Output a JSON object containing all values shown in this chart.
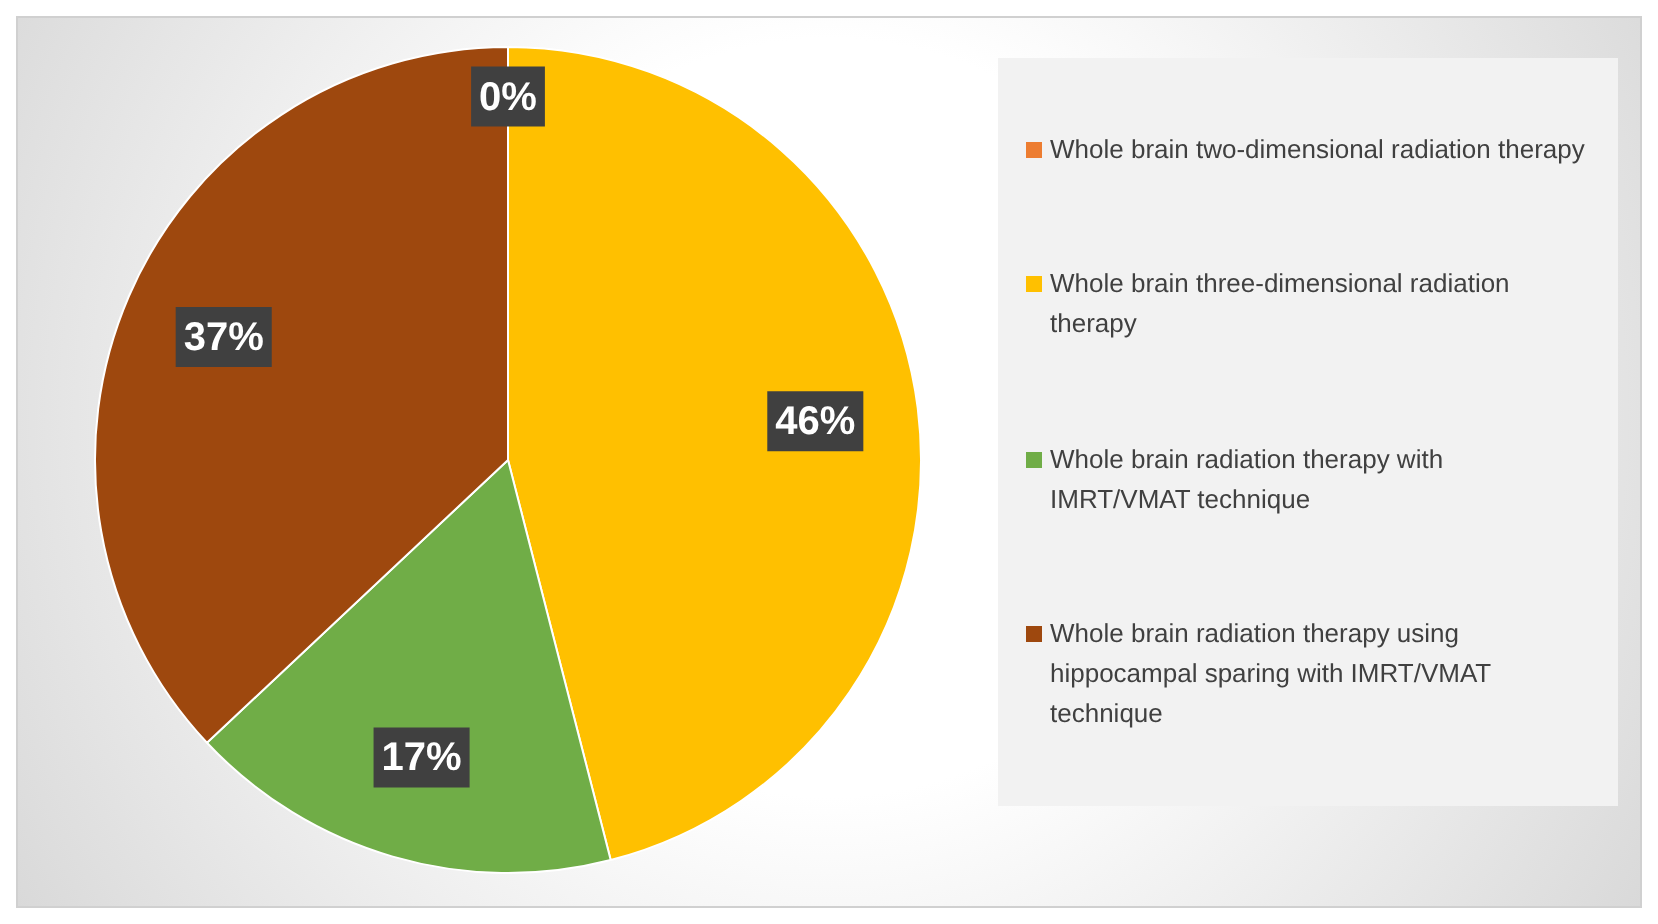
{
  "chart_data": {
    "type": "pie",
    "categories": [
      "Whole brain two-dimensional radiation therapy",
      "Whole brain three-dimensional radiation therapy",
      "Whole brain radiation therapy with IMRT/VMAT technique",
      "Whole brain radiation therapy using hippocampal sparing with IMRT/VMAT technique"
    ],
    "values": [
      0,
      46,
      17,
      37
    ],
    "colors": [
      "#ed7d31",
      "#ffc000",
      "#70ad47",
      "#9e480e"
    ],
    "value_labels": [
      "0%",
      "46%",
      "17%",
      "37%"
    ],
    "legend": "right"
  }
}
